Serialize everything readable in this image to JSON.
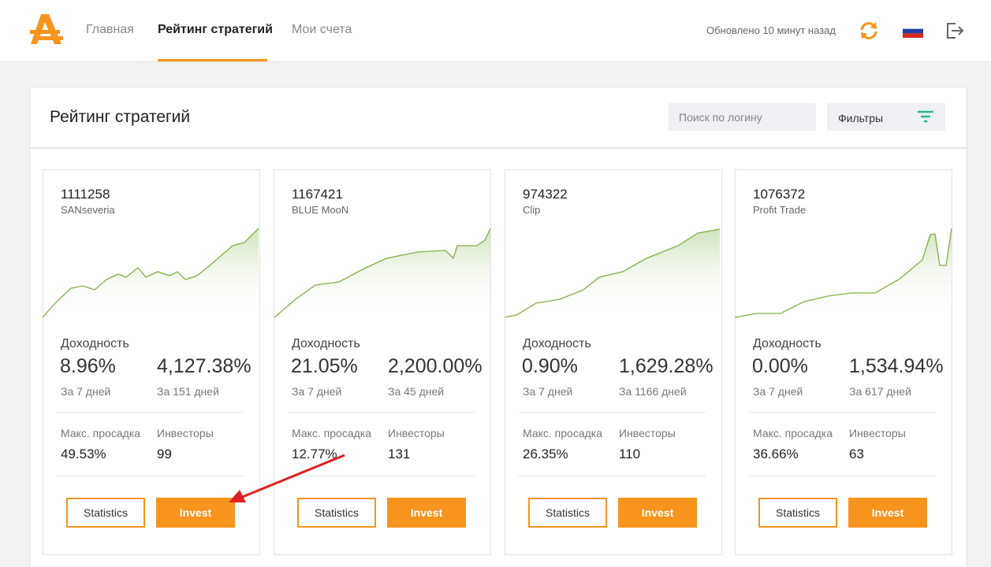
{
  "nav": {
    "items": [
      "Главная",
      "Рейтинг стратегий",
      "Мои счета"
    ],
    "updated": "Обновлено 10 минут назад"
  },
  "panel": {
    "title": "Рейтинг стратегий",
    "search_placeholder": "Поиск по логину",
    "filters": "Фильтры"
  },
  "cards": [
    {
      "id": "1111258",
      "name": "SANseveria",
      "return_label": "Доходность",
      "week_return": "8.96%",
      "week_label": "За 7 дней",
      "total_return": "4,127.38%",
      "total_label": "За 151 дней",
      "drawdown_label": "Макс. просадка",
      "drawdown": "49.53%",
      "investors_label": "Инвесторы",
      "investors": "99",
      "statistics": "Statistics",
      "invest": "Invest"
    },
    {
      "id": "1167421",
      "name": "BLUE MooN",
      "return_label": "Доходность",
      "week_return": "21.05%",
      "week_label": "За 7 дней",
      "total_return": "2,200.00%",
      "total_label": "За 45 дней",
      "drawdown_label": "Макс. просадка",
      "drawdown": "12.77%",
      "investors_label": "Инвесторы",
      "investors": "131",
      "statistics": "Statistics",
      "invest": "Invest"
    },
    {
      "id": "974322",
      "name": "Clip",
      "return_label": "Доходность",
      "week_return": "0.90%",
      "week_label": "За 7 дней",
      "total_return": "1,629.28%",
      "total_label": "За 1166 дней",
      "drawdown_label": "Макс. просадка",
      "drawdown": "26.35%",
      "investors_label": "Инвесторы",
      "investors": "110",
      "statistics": "Statistics",
      "invest": "Invest"
    },
    {
      "id": "1076372",
      "name": "Profit Trade",
      "return_label": "Доходность",
      "week_return": "0.00%",
      "week_label": "За 7 дней",
      "total_return": "1,534.94%",
      "total_label": "За 617 дней",
      "drawdown_label": "Макс. просадка",
      "drawdown": "36.66%",
      "investors_label": "Инвесторы",
      "investors": "63",
      "statistics": "Statistics",
      "invest": "Invest"
    }
  ]
}
